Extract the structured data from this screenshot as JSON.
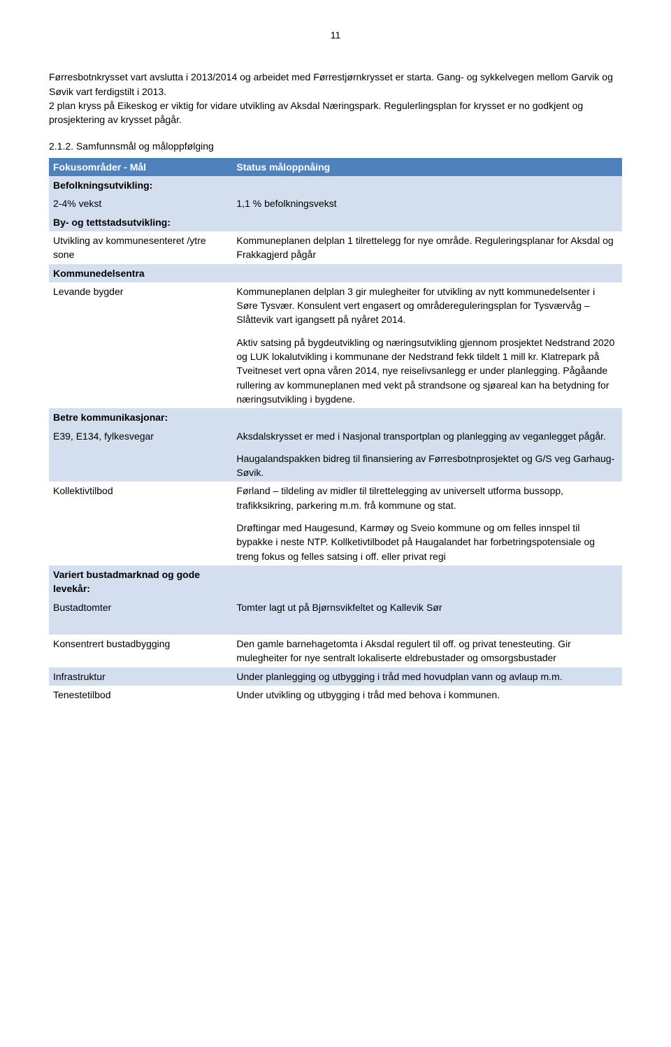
{
  "page_number": "11",
  "intro_paragraph": "Førresbotnkrysset vart avslutta i 2013/2014 og arbeidet med Førrestjørnkrysset er starta. Gang- og sykkelvegen mellom  Garvik og Søvik vart ferdigstilt i 2013.\n2 plan kryss på Eikeskog er viktig for vidare utvikling av Aksdal Næringspark. Regulerlingsplan for krysset er no godkjent og prosjektering av krysset pågår.",
  "section_heading": "2.1.2. Samfunnsmål og måloppfølging",
  "table": {
    "colors": {
      "header_bg": "#4f81bd",
      "header_text": "#ffffff",
      "light_bg": "#d3dfee",
      "white_bg": "#ffffff",
      "text": "#000000"
    },
    "header": {
      "left": "Fokusområder - Mål",
      "right": "Status måloppnåing"
    },
    "rows": [
      {
        "type": "subheader",
        "left": "Befolkningsutvikling:",
        "right": ""
      },
      {
        "type": "light",
        "left": "2-4% vekst",
        "right": "1,1 % befolkningsvekst"
      },
      {
        "type": "subheader",
        "left": "By- og tettstadsutvikling:",
        "right": ""
      },
      {
        "type": "white",
        "left": "Utvikling av kommunesenteret /ytre sone",
        "right": "Kommuneplanen delplan 1 tilrettelegg for nye område. Reguleringsplanar for Aksdal og Frakkagjerd pågår"
      },
      {
        "type": "subheader",
        "left": "Kommunedelsentra",
        "right": ""
      },
      {
        "type": "white-multi",
        "left": "Levande bygder",
        "right_paras": [
          "Kommuneplanen delplan 3 gir mulegheiter for utvikling av nytt kommunedelsenter i Søre Tysvær. Konsulent vert engasert og områdereguleringsplan for Tysværvåg – Slåttevik vart igangsett på nyåret 2014.",
          "Aktiv satsing på bygdeutvikling og næringsutvikling gjennom prosjektet Nedstrand 2020 og LUK lokalutvikling i kommunane der Nedstrand fekk tildelt 1 mill kr. Klatrepark på Tveitneset vert opna våren 2014, nye reiselivsanlegg er under planlegging. Pågåande rullering av kommuneplanen med vekt på strandsone og sjøareal kan ha betydning for næringsutvikling i bygdene."
        ]
      },
      {
        "type": "subheader",
        "left": "Betre kommunikasjonar:",
        "right": ""
      },
      {
        "type": "light-multi",
        "left": "E39, E134, fylkesvegar",
        "right_paras": [
          "Aksdalskrysset er med i Nasjonal transportplan og planlegging av veganlegget pågår.",
          "Haugalandspakken bidreg til finansiering av Førresbotnprosjektet og G/S veg Garhaug-Søvik."
        ]
      },
      {
        "type": "white-multi",
        "left": "Kollektivtilbod",
        "right_paras": [
          "Førland – tildeling av midler til tilrettelegging av universelt utforma bussopp, trafikksikring, parkering m.m. frå kommune og stat.",
          "Drøftingar med Haugesund, Karmøy og Sveio kommune og om felles innspel til bypakke i neste NTP. Kollketivtilbodet på Haugalandet har forbetringspotensiale og treng fokus og felles satsing i off. eller privat regi"
        ]
      },
      {
        "type": "subheader",
        "left": "Variert bustadmarknad og gode levekår:",
        "right": ""
      },
      {
        "type": "light",
        "left": "Bustadtomter",
        "right": "Tomter lagt ut på Bjørnsvikfeltet og Kallevik Sør"
      },
      {
        "type": "blank-light",
        "left": "",
        "right": ""
      },
      {
        "type": "white",
        "left": "Konsentrert bustadbygging",
        "right": "Den gamle barnehagetomta i Aksdal regulert til off. og privat tenesteuting. Gir mulegheiter for nye sentralt lokaliserte eldrebustader og omsorgsbustader"
      },
      {
        "type": "light",
        "left": "Infrastruktur",
        "right": "Under planlegging og utbygging i tråd med hovudplan vann og avlaup m.m."
      },
      {
        "type": "white",
        "left": "Tenestetilbod",
        "right": "Under utvikling og utbygging i tråd med behova i kommunen."
      }
    ]
  }
}
